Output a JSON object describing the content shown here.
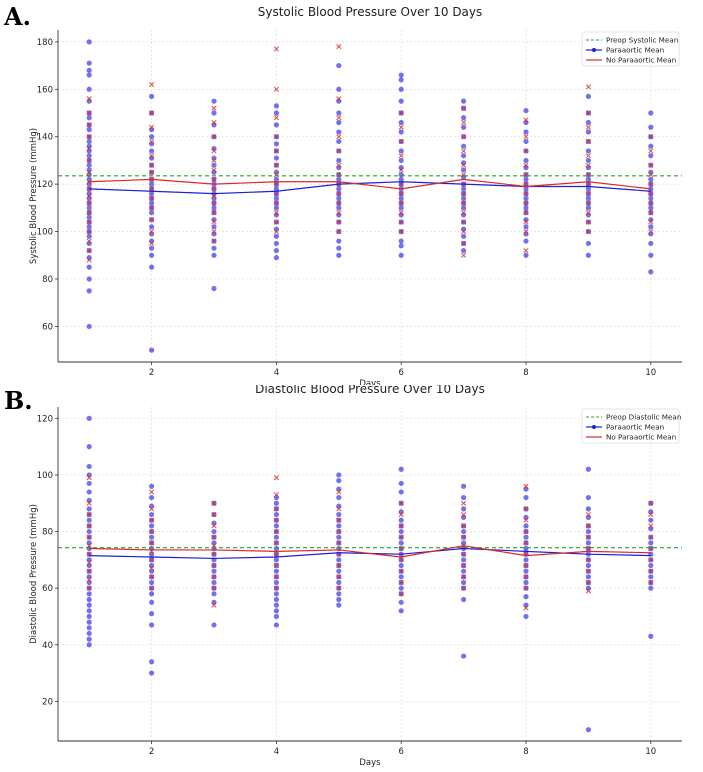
{
  "chart_data": [
    {
      "panel": "A.",
      "type": "scatter",
      "title": "Systolic Blood Pressure Over 10 Days",
      "xlabel": "Days",
      "ylabel": "Systolic Blood Pressure (mmHg)",
      "xlim": [
        0.5,
        10.5
      ],
      "ylim": [
        45,
        185
      ],
      "xticks": [
        2,
        4,
        6,
        8,
        10
      ],
      "yticks": [
        60,
        80,
        100,
        120,
        140,
        160,
        180
      ],
      "grid": true,
      "legend": [
        "Preop Systolic Mean",
        "Paraaortic Mean",
        "No Paraaortic Mean"
      ],
      "legend_position": "top-right",
      "x": [
        1,
        2,
        3,
        4,
        5,
        6,
        7,
        8,
        9,
        10
      ],
      "preop_mean": 123.5,
      "series": [
        {
          "name": "Paraaortic Mean",
          "values": [
            118,
            117,
            116,
            117,
            120,
            121,
            120,
            119,
            119,
            117
          ]
        },
        {
          "name": "No Paraaortic Mean",
          "values": [
            121,
            122,
            120,
            121,
            121,
            118,
            122,
            119,
            121,
            118
          ]
        }
      ],
      "scatter_paraaortic": [
        {
          "day": 1,
          "values": [
            180,
            171,
            168,
            166,
            160,
            155,
            150,
            148,
            145,
            143,
            140,
            138,
            136,
            134,
            132,
            130,
            128,
            126,
            124,
            122,
            120,
            118,
            116,
            114,
            112,
            110,
            108,
            106,
            104,
            102,
            100,
            98,
            95,
            92,
            89,
            85,
            80,
            75,
            60
          ]
        },
        {
          "day": 2,
          "values": [
            157,
            150,
            143,
            140,
            137,
            134,
            131,
            128,
            125,
            122,
            120,
            118,
            116,
            114,
            112,
            110,
            108,
            105,
            102,
            99,
            96,
            93,
            90,
            85,
            50
          ]
        },
        {
          "day": 3,
          "values": [
            155,
            150,
            145,
            140,
            135,
            131,
            128,
            125,
            122,
            120,
            118,
            116,
            114,
            112,
            110,
            108,
            105,
            102,
            99,
            96,
            93,
            90,
            76
          ]
        },
        {
          "day": 4,
          "values": [
            153,
            150,
            145,
            140,
            137,
            134,
            131,
            128,
            125,
            122,
            120,
            118,
            116,
            114,
            112,
            110,
            107,
            104,
            101,
            98,
            95,
            92,
            89
          ]
        },
        {
          "day": 5,
          "values": [
            170,
            160,
            155,
            150,
            146,
            142,
            138,
            134,
            130,
            127,
            124,
            122,
            120,
            118,
            116,
            114,
            112,
            110,
            107,
            104,
            100,
            96,
            93,
            90
          ]
        },
        {
          "day": 6,
          "values": [
            166,
            164,
            160,
            155,
            150,
            146,
            142,
            138,
            134,
            130,
            127,
            124,
            122,
            120,
            118,
            116,
            114,
            112,
            110,
            107,
            104,
            100,
            96,
            94,
            90
          ]
        },
        {
          "day": 7,
          "values": [
            155,
            152,
            148,
            144,
            140,
            136,
            132,
            129,
            126,
            123,
            120,
            118,
            116,
            114,
            112,
            110,
            107,
            104,
            101,
            98,
            95,
            92
          ]
        },
        {
          "day": 8,
          "values": [
            151,
            146,
            142,
            138,
            134,
            130,
            127,
            124,
            122,
            120,
            118,
            116,
            114,
            112,
            110,
            108,
            105,
            102,
            99,
            96,
            90
          ]
        },
        {
          "day": 9,
          "values": [
            157,
            150,
            146,
            142,
            138,
            134,
            130,
            127,
            124,
            122,
            120,
            118,
            116,
            114,
            112,
            110,
            107,
            104,
            100,
            95,
            90
          ]
        },
        {
          "day": 10,
          "values": [
            150,
            144,
            140,
            136,
            132,
            128,
            125,
            122,
            120,
            118,
            116,
            114,
            112,
            110,
            108,
            105,
            102,
            99,
            95,
            90,
            83
          ]
        }
      ],
      "scatter_no_paraaortic": [
        {
          "day": 1,
          "values": [
            156,
            150,
            145,
            140,
            135,
            130,
            125,
            121,
            118,
            115,
            112,
            108,
            104,
            100,
            96,
            92,
            88
          ]
        },
        {
          "day": 2,
          "values": [
            162,
            150,
            144,
            138,
            132,
            128,
            125,
            122,
            118,
            114,
            110,
            105,
            100,
            95
          ]
        },
        {
          "day": 3,
          "values": [
            152,
            146,
            140,
            134,
            130,
            126,
            122,
            118,
            115,
            112,
            108,
            104,
            100,
            96
          ]
        },
        {
          "day": 4,
          "values": [
            177,
            160,
            148,
            140,
            134,
            128,
            124,
            120,
            116,
            112,
            108,
            104,
            100
          ]
        },
        {
          "day": 5,
          "values": [
            178,
            156,
            148,
            140,
            134,
            128,
            124,
            120,
            116,
            112,
            108,
            104,
            100
          ]
        },
        {
          "day": 6,
          "values": [
            150,
            144,
            138,
            132,
            126,
            120,
            116,
            112,
            108,
            104,
            100
          ]
        },
        {
          "day": 7,
          "values": [
            152,
            146,
            140,
            134,
            128,
            124,
            120,
            116,
            112,
            108,
            104,
            100,
            95,
            90
          ]
        },
        {
          "day": 8,
          "values": [
            147,
            140,
            134,
            128,
            124,
            120,
            116,
            112,
            108,
            104,
            100,
            92
          ]
        },
        {
          "day": 9,
          "values": [
            161,
            150,
            144,
            138,
            132,
            128,
            124,
            120,
            116,
            112,
            108,
            104,
            100
          ]
        },
        {
          "day": 10,
          "values": [
            140,
            134,
            128,
            124,
            120,
            116,
            112,
            108,
            104,
            100
          ]
        }
      ]
    },
    {
      "panel": "B.",
      "type": "scatter",
      "title": "Diastolic Blood Pressure Over 10 Days",
      "xlabel": "Days",
      "ylabel": "Diastolic Blood Pressure (mmHg)",
      "xlim": [
        0.5,
        10.5
      ],
      "ylim": [
        6,
        124
      ],
      "xticks": [
        2,
        4,
        6,
        8,
        10
      ],
      "yticks": [
        20,
        40,
        60,
        80,
        100,
        120
      ],
      "grid": true,
      "legend": [
        "Preop Diastolic Mean",
        "Paraaortic Mean",
        "No Paraaortic Mean"
      ],
      "legend_position": "top-right",
      "x": [
        1,
        2,
        3,
        4,
        5,
        6,
        7,
        8,
        9,
        10
      ],
      "preop_mean": 74.3,
      "series": [
        {
          "name": "Paraaortic Mean",
          "values": [
            71.5,
            71,
            70.5,
            71,
            72.5,
            72,
            74,
            73,
            72,
            71.5
          ]
        },
        {
          "name": "No Paraaortic Mean",
          "values": [
            74,
            73.5,
            73.5,
            73,
            73.5,
            71,
            75,
            71.5,
            73,
            72.5
          ]
        }
      ],
      "scatter_paraaortic": [
        {
          "day": 1,
          "values": [
            120,
            110,
            103,
            100,
            97,
            94,
            91,
            88,
            86,
            84,
            82,
            80,
            78,
            76,
            74,
            72,
            70,
            68,
            66,
            64,
            62,
            60,
            58,
            56,
            54,
            52,
            50,
            48,
            46,
            44,
            42,
            40
          ]
        },
        {
          "day": 2,
          "values": [
            96,
            92,
            89,
            86,
            84,
            82,
            80,
            78,
            76,
            74,
            72,
            70,
            68,
            66,
            64,
            62,
            60,
            58,
            55,
            51,
            47,
            34,
            30
          ]
        },
        {
          "day": 3,
          "values": [
            90,
            86,
            83,
            80,
            78,
            76,
            74,
            72,
            70,
            68,
            66,
            64,
            62,
            60,
            58,
            55,
            47
          ]
        },
        {
          "day": 4,
          "values": [
            92,
            90,
            88,
            86,
            84,
            82,
            80,
            78,
            76,
            74,
            72,
            70,
            68,
            66,
            64,
            62,
            60,
            58,
            56,
            54,
            52,
            50,
            47
          ]
        },
        {
          "day": 5,
          "values": [
            100,
            98,
            95,
            92,
            89,
            86,
            84,
            82,
            80,
            78,
            76,
            74,
            72,
            70,
            68,
            66,
            64,
            62,
            60,
            58,
            56,
            54
          ]
        },
        {
          "day": 6,
          "values": [
            102,
            97,
            94,
            90,
            87,
            84,
            82,
            80,
            78,
            76,
            74,
            72,
            70,
            68,
            66,
            64,
            62,
            60,
            58,
            55,
            52
          ]
        },
        {
          "day": 7,
          "values": [
            96,
            92,
            88,
            85,
            82,
            80,
            78,
            76,
            74,
            72,
            70,
            68,
            66,
            64,
            62,
            60,
            56,
            36
          ]
        },
        {
          "day": 8,
          "values": [
            95,
            92,
            88,
            85,
            82,
            80,
            78,
            76,
            74,
            72,
            70,
            68,
            66,
            64,
            62,
            60,
            57,
            54,
            50
          ]
        },
        {
          "day": 9,
          "values": [
            102,
            92,
            88,
            85,
            82,
            80,
            78,
            76,
            74,
            72,
            70,
            68,
            66,
            64,
            62,
            60,
            10
          ]
        },
        {
          "day": 10,
          "values": [
            90,
            87,
            84,
            81,
            78,
            76,
            74,
            72,
            70,
            68,
            66,
            64,
            62,
            60,
            43
          ]
        }
      ],
      "scatter_no_paraaortic": [
        {
          "day": 1,
          "values": [
            99,
            90,
            86,
            82,
            78,
            75,
            72,
            69,
            66,
            63,
            60
          ]
        },
        {
          "day": 2,
          "values": [
            94,
            88,
            84,
            80,
            76,
            73,
            70,
            67,
            64,
            60
          ]
        },
        {
          "day": 3,
          "values": [
            90,
            86,
            82,
            78,
            75,
            72,
            68,
            64,
            60,
            54
          ]
        },
        {
          "day": 4,
          "values": [
            99,
            93,
            88,
            84,
            80,
            76,
            72,
            68,
            64,
            60
          ]
        },
        {
          "day": 5,
          "values": [
            94,
            88,
            84,
            80,
            76,
            72,
            68,
            64,
            60
          ]
        },
        {
          "day": 6,
          "values": [
            90,
            86,
            82,
            78,
            74,
            70,
            66,
            62,
            58
          ]
        },
        {
          "day": 7,
          "values": [
            90,
            86,
            82,
            78,
            75,
            72,
            68,
            64,
            60
          ]
        },
        {
          "day": 8,
          "values": [
            96,
            88,
            84,
            80,
            76,
            72,
            68,
            64,
            60,
            53
          ]
        },
        {
          "day": 9,
          "values": [
            86,
            82,
            78,
            74,
            70,
            66,
            62,
            59
          ]
        },
        {
          "day": 10,
          "values": [
            90,
            86,
            82,
            78,
            74,
            70,
            66,
            62
          ]
        }
      ]
    }
  ],
  "colors": {
    "paraaortic": "#1f1fd6",
    "paraaortic_dot": "#3b3bea",
    "no_paraaortic": "#d92a2a",
    "preop": "#2ca02c",
    "grid": "#d9d9d9",
    "axis": "#333333"
  }
}
